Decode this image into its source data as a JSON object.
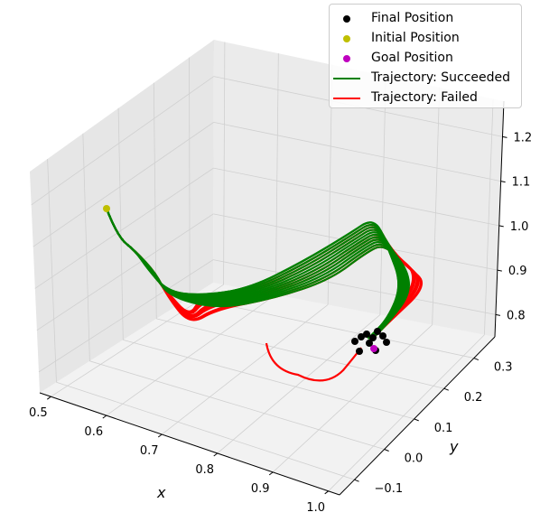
{
  "chart_data": {
    "type": "line",
    "projection": "3d",
    "xlabel": "x",
    "ylabel": "y",
    "zlabel": "",
    "xticks": [
      "0.5",
      "0.6",
      "0.7",
      "0.8",
      "0.9",
      "1.0"
    ],
    "yticks": [
      "−0.1",
      "0.0",
      "0.1",
      "0.2",
      "0.3"
    ],
    "zticks": [
      "0.8",
      "0.9",
      "1.0",
      "1.1",
      "1.2"
    ],
    "xlim": [
      0.48,
      1.02
    ],
    "ylim": [
      -0.15,
      0.37
    ],
    "zlim": [
      0.75,
      1.28
    ],
    "grid": true,
    "legend_position": "top-right",
    "legend": [
      {
        "label": "Final Position",
        "kind": "marker",
        "color": "#000000"
      },
      {
        "label": "Initial Position",
        "kind": "marker",
        "color": "#bfbf00"
      },
      {
        "label": "Goal Position",
        "kind": "marker",
        "color": "#bf00bf"
      },
      {
        "label": "Trajectory: Succeeded",
        "kind": "line",
        "color": "#008000"
      },
      {
        "label": "Trajectory: Failed",
        "kind": "line",
        "color": "#ff0000"
      }
    ],
    "initial_position": {
      "x": 0.52,
      "y": 0.3,
      "z": 1.05
    },
    "goal_position": {
      "x": 0.86,
      "y": 0.05,
      "z": 0.78
    },
    "final_positions": [
      [
        0.84,
        0.07,
        0.79
      ],
      [
        0.85,
        0.08,
        0.8
      ],
      [
        0.86,
        0.09,
        0.79
      ],
      [
        0.87,
        0.1,
        0.8
      ],
      [
        0.85,
        0.06,
        0.78
      ],
      [
        0.87,
        0.08,
        0.78
      ],
      [
        0.88,
        0.07,
        0.79
      ],
      [
        0.86,
        0.1,
        0.81
      ],
      [
        0.84,
        0.09,
        0.8
      ],
      [
        0.88,
        0.1,
        0.8
      ]
    ]
  }
}
